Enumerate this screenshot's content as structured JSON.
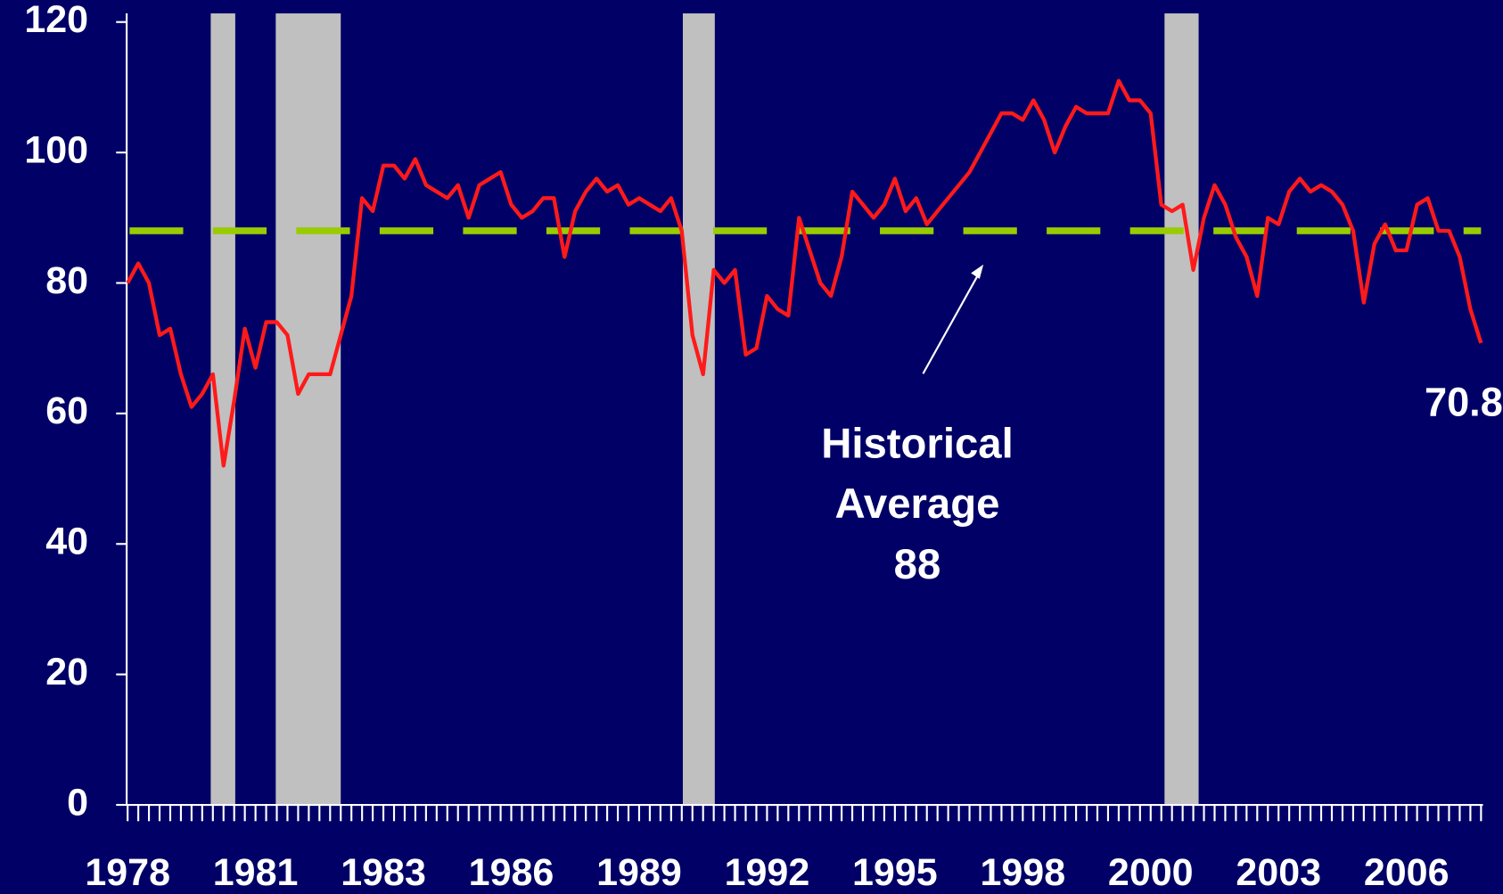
{
  "chart_data": {
    "type": "line",
    "color": "#ff1a1a",
    "categories": [
      "1978",
      null,
      null,
      null,
      null,
      null,
      null,
      null,
      null,
      null,
      null,
      null,
      "1981",
      null,
      null,
      null,
      null,
      null,
      null,
      null,
      null,
      null,
      null,
      null,
      "1983",
      null,
      null,
      null,
      null,
      null,
      null,
      null,
      null,
      null,
      null,
      null,
      "1986",
      null,
      null,
      null,
      null,
      null,
      null,
      null,
      null,
      null,
      null,
      null,
      "1989",
      null,
      null,
      null,
      null,
      null,
      null,
      null,
      null,
      null,
      null,
      null,
      "1992",
      null,
      null,
      null,
      null,
      null,
      null,
      null,
      null,
      null,
      null,
      null,
      "1995",
      null,
      null,
      null,
      null,
      null,
      null,
      null,
      null,
      null,
      null,
      null,
      "1998",
      null,
      null,
      null,
      null,
      null,
      null,
      null,
      null,
      null,
      null,
      null,
      "2000",
      null,
      null,
      null,
      null,
      null,
      null,
      null,
      null,
      null,
      null,
      null,
      "2003",
      null,
      null,
      null,
      null,
      null,
      null,
      null,
      null,
      null,
      null,
      null,
      "2006",
      null,
      null,
      null,
      null,
      null,
      null,
      null
    ],
    "values": [
      80,
      83,
      80,
      72,
      73,
      66,
      61,
      63,
      66,
      52,
      62,
      73,
      67,
      74,
      74,
      72,
      63,
      66,
      66,
      66,
      72,
      78,
      93,
      91,
      98,
      98,
      96,
      99,
      95,
      94,
      93,
      95,
      90,
      95,
      96,
      97,
      92,
      90,
      91,
      93,
      93,
      84,
      91,
      94,
      96,
      94,
      95,
      92,
      93,
      92,
      91,
      93,
      88,
      72,
      66,
      82,
      80,
      82,
      69,
      70,
      78,
      76,
      75,
      90,
      85,
      80,
      78,
      84,
      94,
      92,
      90,
      92,
      96,
      91,
      93,
      89,
      91,
      93,
      95,
      97,
      100,
      103,
      106,
      106,
      105,
      108,
      105,
      100,
      104,
      107,
      106,
      106,
      106,
      111,
      108,
      108,
      106,
      92,
      91,
      92,
      82,
      90,
      95,
      92,
      87,
      84,
      78,
      90,
      89,
      94,
      96,
      94,
      95,
      94,
      92,
      88,
      77,
      86,
      89,
      85,
      85,
      92,
      93,
      88,
      88,
      84,
      76,
      70.8
    ],
    "last_value_label": "70.8",
    "ylim": [
      0,
      120
    ],
    "yticks": [
      0,
      20,
      40,
      60,
      80,
      100,
      120
    ],
    "shaded_ranges": [
      {
        "from": 7.8,
        "to": 10.1
      },
      {
        "from": 13.9,
        "to": 20
      },
      {
        "from": 52.1,
        "to": 55.1
      },
      {
        "from": 97.3,
        "to": 100.5
      }
    ],
    "shade_color": "#c0c0c0",
    "reference_line": {
      "value": 88,
      "color": "#99cc00"
    },
    "annotation": [
      "Historical",
      "Average",
      "88"
    ]
  }
}
